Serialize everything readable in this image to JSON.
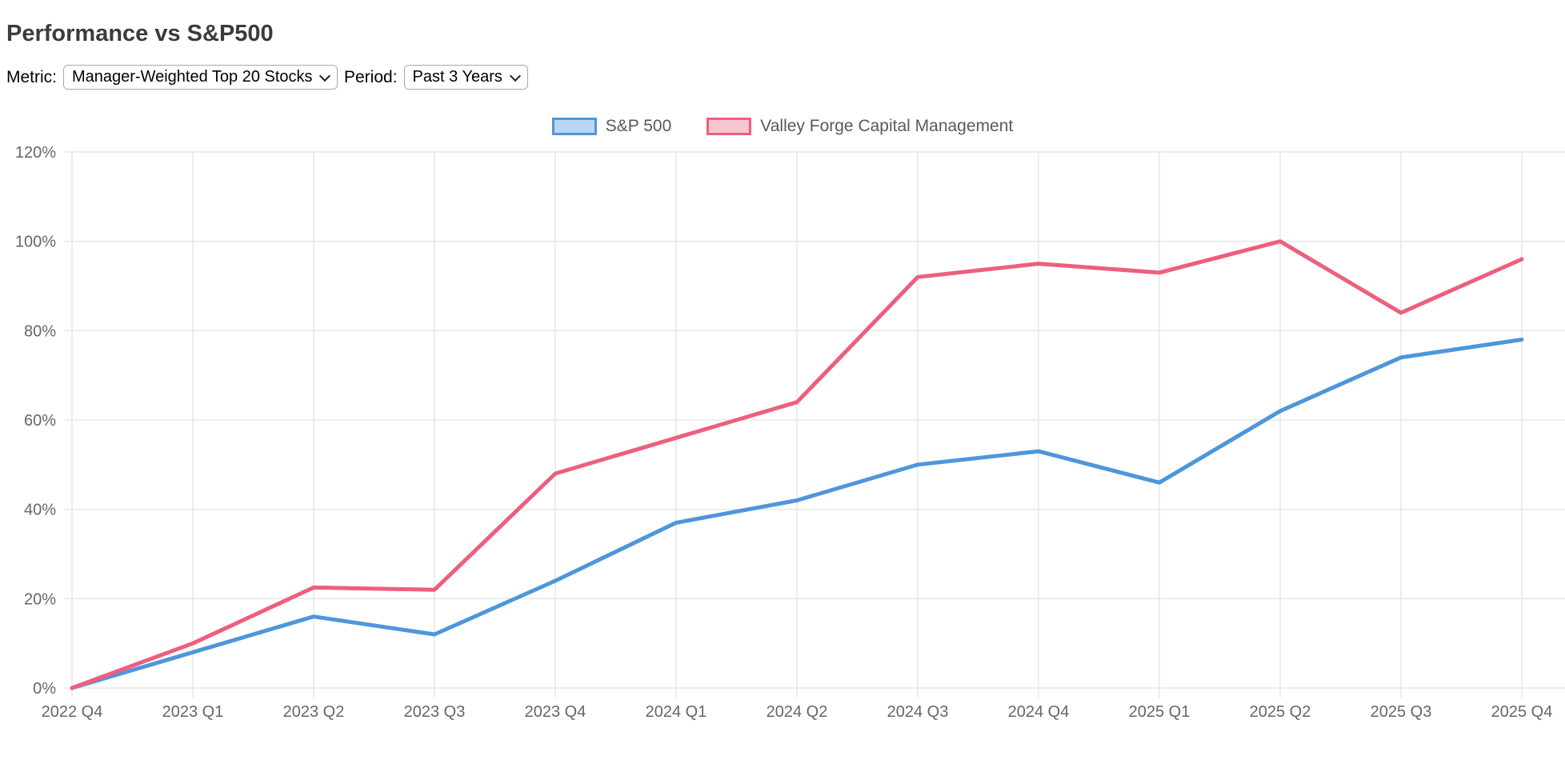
{
  "page": {
    "title": "Performance vs S&P500"
  },
  "controls": {
    "metric_label": "Metric:",
    "metric_value": "Manager-Weighted Top 20 Stocks",
    "period_label": "Period:",
    "period_value": "Past 3 Years"
  },
  "chart_data": {
    "type": "line",
    "title": "Performance vs S&P500",
    "categories": [
      "2022 Q4",
      "2023 Q1",
      "2023 Q2",
      "2023 Q3",
      "2023 Q4",
      "2024 Q1",
      "2024 Q2",
      "2024 Q3",
      "2024 Q4",
      "2025 Q1",
      "2025 Q2",
      "2025 Q3",
      "2025 Q4"
    ],
    "series": [
      {
        "name": "S&P 500",
        "color": "#4e96db",
        "legend_fill": "#bad6f2",
        "values": [
          0,
          8,
          16,
          12,
          24,
          37,
          42,
          50,
          53,
          46,
          62,
          74,
          78
        ]
      },
      {
        "name": "Valley Forge Capital Management",
        "color": "#ed5f7c",
        "legend_fill": "#f6c6d1",
        "values": [
          0,
          10,
          22.5,
          22,
          48,
          56,
          64,
          92,
          95,
          93,
          100,
          84,
          96
        ]
      }
    ],
    "ylim": [
      0,
      120
    ],
    "ytick_step": 20,
    "ytick_labels": [
      "0%",
      "20%",
      "40%",
      "60%",
      "80%",
      "100%",
      "120%"
    ],
    "ytick_suffix": "%",
    "grid": true,
    "legend_position": "top",
    "colors": {
      "gridline": "#e7e7e7",
      "tick_label": "#666666",
      "background": "#ffffff"
    }
  }
}
